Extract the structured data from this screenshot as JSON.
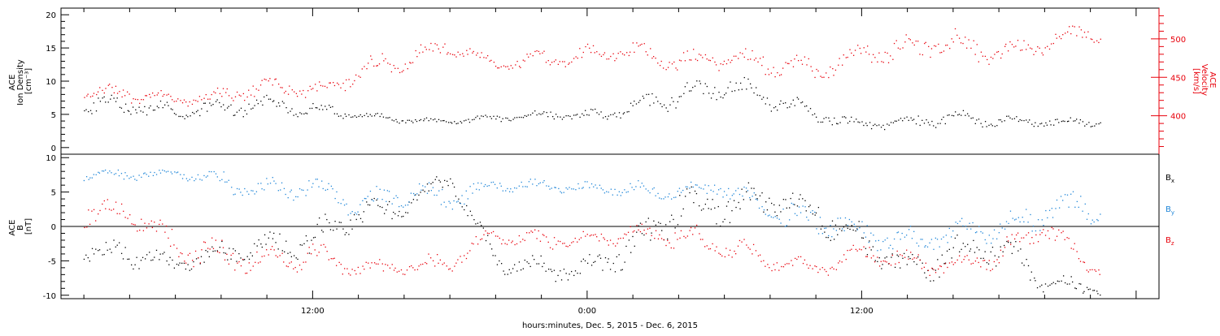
{
  "colors": {
    "black": "#000000",
    "red": "#e8000b",
    "blue": "#1f86d8"
  },
  "chart_data": [
    {
      "type": "scatter",
      "panel": "top",
      "ylabel_lines": [
        "ACE",
        "Ion Density",
        "[cm⁻³]"
      ],
      "ylim": [
        -1,
        21
      ],
      "yticks": [
        0,
        5,
        10,
        15,
        20
      ],
      "y2label_lines": [
        "ACE",
        "Velocity",
        "[km/s]"
      ],
      "y2lim": [
        350,
        540
      ],
      "y2ticks": [
        400,
        450,
        500
      ],
      "series": [
        {
          "axis": "left",
          "color": "#000000",
          "x": [
            -8,
            -6,
            -4,
            -2,
            0,
            2,
            4,
            6,
            8,
            10,
            12,
            14,
            16,
            18,
            20,
            22,
            24,
            26,
            28,
            30,
            32,
            34
          ],
          "y": [
            6.5,
            5.5,
            6.0,
            6.5,
            5.8,
            5.0,
            4.2,
            4.0,
            4.5,
            5.0,
            4.8,
            6.0,
            8.0,
            9.5,
            7.5,
            5.0,
            3.5,
            4.0,
            4.5,
            4.0,
            4.0,
            3.8
          ],
          "spread": [
            1.6,
            1.2,
            1.5,
            1.6,
            1.2,
            0.7,
            0.5,
            0.4,
            0.6,
            0.8,
            1.0,
            1.4,
            2.0,
            2.0,
            1.8,
            1.2,
            1.0,
            1.0,
            1.2,
            0.9,
            0.8,
            0.6
          ]
        },
        {
          "axis": "right",
          "color": "#e8000b",
          "x": [
            -8,
            -6,
            -4,
            -2,
            0,
            2,
            4,
            6,
            8,
            10,
            12,
            14,
            16,
            18,
            20,
            22,
            24,
            26,
            28,
            30,
            32,
            34
          ],
          "y": [
            430,
            420,
            425,
            440,
            432,
            455,
            475,
            490,
            465,
            475,
            480,
            485,
            470,
            475,
            470,
            460,
            480,
            490,
            495,
            480,
            495,
            510
          ],
          "spread": [
            12,
            8,
            12,
            15,
            12,
            18,
            15,
            12,
            8,
            12,
            14,
            12,
            16,
            14,
            18,
            14,
            14,
            18,
            20,
            16,
            16,
            14
          ]
        }
      ]
    },
    {
      "type": "scatter",
      "panel": "bottom",
      "ylabel_lines": [
        "ACE",
        "B",
        "[nT]"
      ],
      "ylim": [
        -10.5,
        10.5
      ],
      "yticks": [
        -10,
        -5,
        0,
        5,
        10
      ],
      "reference_line": 0,
      "x_tick_labels": [
        "12:00",
        "0:00",
        "12:00"
      ],
      "x_tick_values": [
        0,
        12,
        24
      ],
      "xlim": [
        -11,
        37
      ],
      "xlabel": "hours:minutes, Dec.  5, 2015 - Dec.  6, 2015",
      "series": [
        {
          "name": "Bx",
          "color": "#000000",
          "x": [
            -8,
            -6,
            -4,
            -2,
            0,
            2,
            4,
            6,
            8,
            10,
            12,
            14,
            16,
            18,
            20,
            22,
            24,
            26,
            28,
            30,
            32,
            34
          ],
          "y": [
            -4,
            -5.5,
            -4,
            -3,
            -2,
            2,
            3,
            7,
            -5,
            -6,
            -6,
            -3,
            3,
            3,
            4,
            2,
            -2,
            -6,
            -4,
            -3,
            -8,
            -9
          ],
          "spread": [
            2,
            1.5,
            2,
            2,
            3,
            2,
            2,
            1.5,
            1.5,
            2,
            2,
            3,
            3,
            3,
            2.5,
            2.5,
            3,
            2.5,
            3,
            3,
            1.5,
            1.2
          ]
        },
        {
          "name": "By",
          "color": "#1f86d8",
          "x": [
            -8,
            -6,
            -4,
            -2,
            0,
            2,
            4,
            6,
            8,
            10,
            12,
            14,
            16,
            18,
            20,
            22,
            24,
            26,
            28,
            30,
            32,
            34
          ],
          "y": [
            7.5,
            7.8,
            6.5,
            5,
            6,
            3,
            5,
            4,
            6,
            6,
            5.5,
            5.5,
            5,
            6,
            2,
            1,
            -1,
            -2,
            -1,
            0,
            2,
            3
          ],
          "spread": [
            0.8,
            0.6,
            1.5,
            2,
            1.5,
            2,
            2,
            2,
            1,
            1,
            1,
            1.2,
            1.2,
            1.5,
            2,
            2.5,
            2,
            2,
            2,
            2,
            2.5,
            2.5
          ]
        },
        {
          "name": "Bz",
          "color": "#e8000b",
          "x": [
            -8,
            -6,
            -4,
            -2,
            0,
            2,
            4,
            6,
            8,
            10,
            12,
            14,
            16,
            18,
            20,
            22,
            24,
            26,
            28,
            30,
            32,
            34
          ],
          "y": [
            2,
            -3,
            -4,
            -5,
            -4,
            -6,
            -6,
            -5,
            -1,
            -2,
            -2,
            -1,
            -1,
            -3,
            -5,
            -6,
            -4,
            -5,
            -6,
            -4,
            0,
            -6
          ],
          "spread": [
            2,
            3,
            2.5,
            2,
            2.5,
            1,
            1.5,
            1.5,
            1.5,
            1.5,
            1.2,
            1.5,
            2,
            2.5,
            1.5,
            1.2,
            2,
            1.5,
            1.5,
            2,
            1.5,
            2
          ]
        }
      ],
      "legend": [
        {
          "base": "B",
          "sub": "x",
          "color": "#000000"
        },
        {
          "base": "B",
          "sub": "y",
          "color": "#1f86d8"
        },
        {
          "base": "B",
          "sub": "z",
          "color": "#e8000b"
        }
      ]
    }
  ]
}
